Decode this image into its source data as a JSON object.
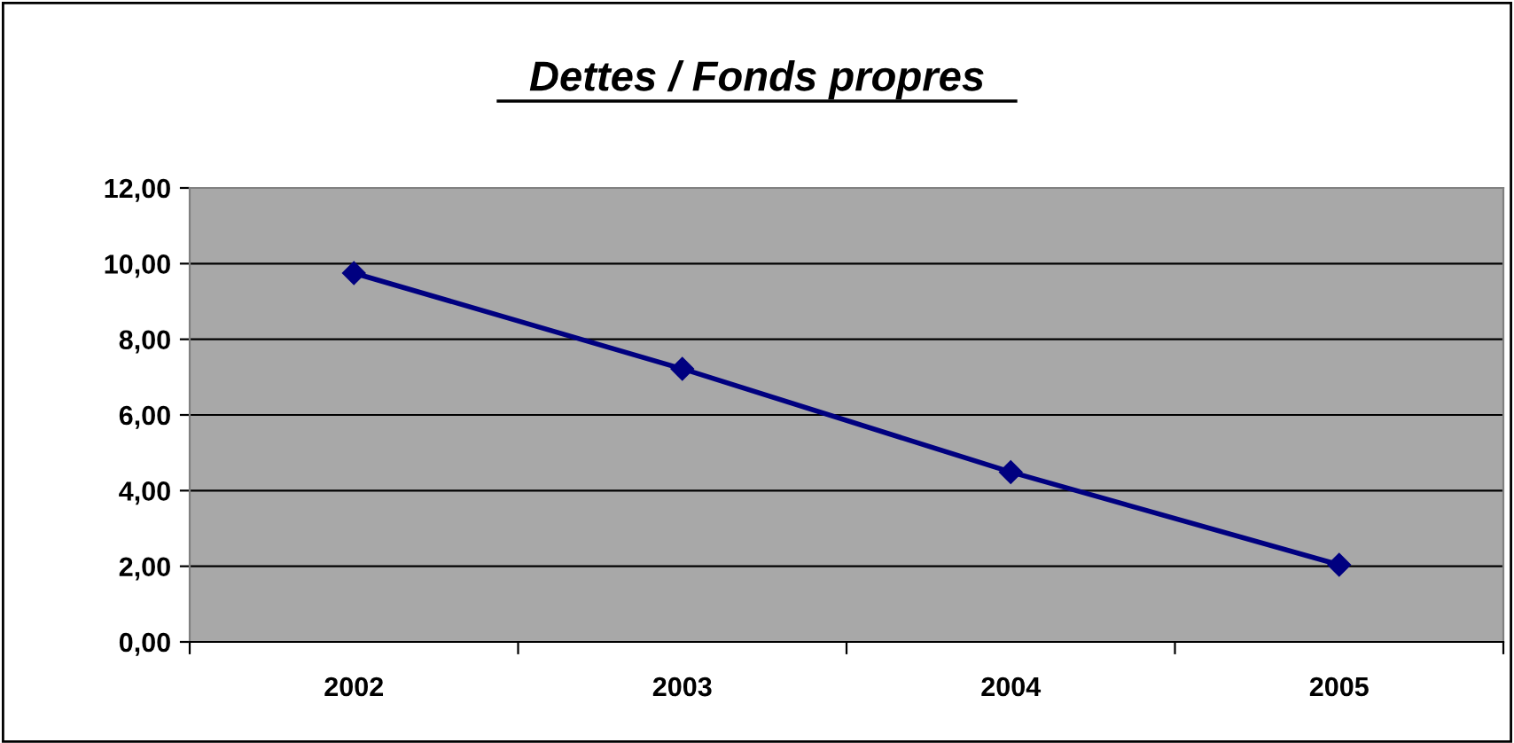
{
  "chart_data": {
    "type": "line",
    "title": "Dettes / Fonds propres",
    "categories": [
      "2002",
      "2003",
      "2004",
      "2005"
    ],
    "series": [
      {
        "color": "#000080",
        "values": [
          9.75,
          7.22,
          4.49,
          2.04
        ]
      }
    ],
    "ylim": [
      0,
      12
    ],
    "yticks": [
      {
        "value": 0,
        "label": "0,00"
      },
      {
        "value": 2,
        "label": "2,00"
      },
      {
        "value": 4,
        "label": "4,00"
      },
      {
        "value": 6,
        "label": "6,00"
      },
      {
        "value": 8,
        "label": "8,00"
      },
      {
        "value": 10,
        "label": "10,00"
      },
      {
        "value": 12,
        "label": "12,00"
      }
    ],
    "grid": "y",
    "marker": "diamond",
    "line_style": "solid",
    "legend": false
  }
}
